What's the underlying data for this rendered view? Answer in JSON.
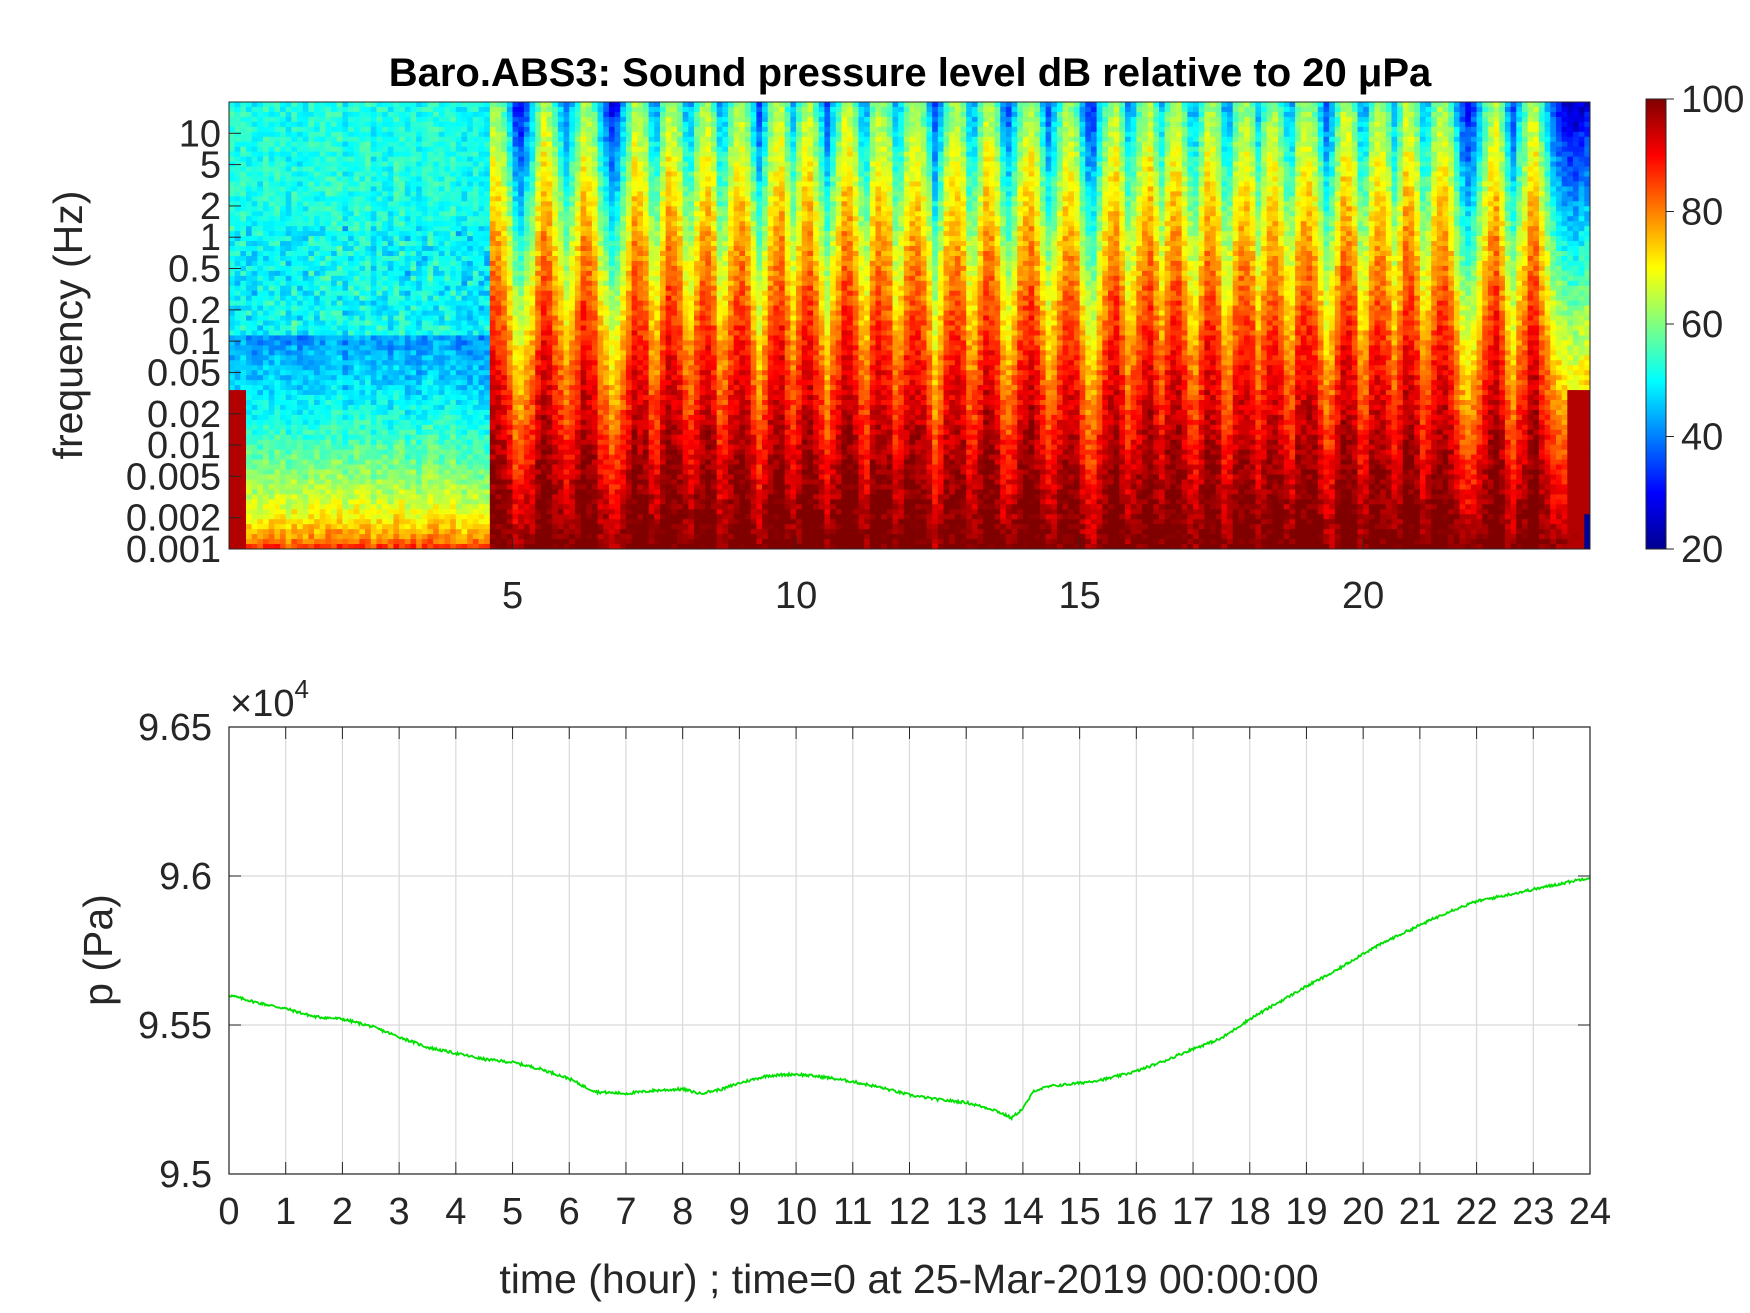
{
  "chart_data": [
    {
      "type": "heatmap",
      "title": "Baro.ABS3: Sound pressure level dB relative to 20 μPa",
      "ylabel": "frequency (Hz)",
      "xlabel": "",
      "x_ticks": [
        5,
        10,
        15,
        20
      ],
      "x_tick_labels": [
        "5",
        "10",
        "15",
        "20"
      ],
      "xlim": [
        0,
        24
      ],
      "y_scale": "log",
      "y_ticks": [
        0.001,
        0.002,
        0.005,
        0.01,
        0.02,
        0.05,
        0.1,
        0.2,
        0.5,
        1,
        2,
        5,
        10
      ],
      "y_tick_labels": [
        "0.001",
        "0.002",
        "0.005",
        "0.01",
        "0.02",
        "0.05",
        "0.1",
        "0.2",
        "0.5",
        "1",
        "2",
        "5",
        "10"
      ],
      "ylim": [
        0.001,
        20
      ],
      "colormap": "jet",
      "colorbar": {
        "range": [
          20,
          100
        ],
        "ticks": [
          20,
          40,
          60,
          80,
          100
        ],
        "tick_labels": [
          "20",
          "40",
          "60",
          "80",
          "100"
        ]
      },
      "quiet_period_hours": [
        0,
        4.6
      ],
      "active_bursts_hours": [
        4.7,
        5.6,
        6.3,
        7.2,
        7.8,
        8.4,
        9.0,
        9.7,
        10.2,
        10.9,
        11.5,
        12.1,
        12.8,
        13.4,
        14.1,
        14.8,
        15.6,
        16.2,
        16.7,
        17.3,
        17.9,
        18.4,
        19.0,
        19.7,
        20.3,
        20.8,
        21.4,
        22.3,
        23.0
      ],
      "grid": false
    },
    {
      "type": "line",
      "xlabel": "time (hour) ; time=0 at 25-Mar-2019 00:00:00",
      "ylabel": "p (Pa)",
      "y_multiplier_label": "×10",
      "y_multiplier_exponent": "4",
      "xlim": [
        0,
        24
      ],
      "ylim": [
        95000,
        96500
      ],
      "x_ticks": [
        0,
        1,
        2,
        3,
        4,
        5,
        6,
        7,
        8,
        9,
        10,
        11,
        12,
        13,
        14,
        15,
        16,
        17,
        18,
        19,
        20,
        21,
        22,
        23,
        24
      ],
      "x_tick_labels": [
        "0",
        "1",
        "2",
        "3",
        "4",
        "5",
        "6",
        "7",
        "8",
        "9",
        "10",
        "11",
        "12",
        "13",
        "14",
        "15",
        "16",
        "17",
        "18",
        "19",
        "20",
        "21",
        "22",
        "23",
        "24"
      ],
      "y_ticks": [
        95000,
        95500,
        96000,
        96500
      ],
      "y_tick_labels": [
        "9.5",
        "9.55",
        "9.6",
        "9.65"
      ],
      "grid": true,
      "line_color": "#00e000",
      "series": [
        {
          "x": [
            0,
            0.5,
            1,
            1.5,
            2,
            2.5,
            3,
            3.5,
            4,
            4.5,
            5,
            5.5,
            6,
            6.3,
            6.5,
            7,
            7.5,
            8,
            8.3,
            8.7,
            9,
            9.5,
            10,
            10.5,
            11,
            11.5,
            12,
            12.5,
            13,
            13.5,
            13.8,
            14,
            14.2,
            14.5,
            15,
            15.5,
            16,
            16.5,
            17,
            17.5,
            18,
            18.5,
            19,
            19.5,
            20,
            20.5,
            21,
            21.5,
            22,
            22.5,
            23,
            23.5,
            24
          ],
          "y": [
            95600,
            95575,
            95555,
            95528,
            95520,
            95496,
            95460,
            95425,
            95405,
            95385,
            95375,
            95352,
            95320,
            95290,
            95275,
            95270,
            95280,
            95285,
            95270,
            95285,
            95305,
            95330,
            95335,
            95325,
            95310,
            95290,
            95265,
            95250,
            95240,
            95215,
            95188,
            95220,
            95280,
            95295,
            95305,
            95320,
            95345,
            95380,
            95420,
            95455,
            95520,
            95575,
            95630,
            95680,
            95740,
            95790,
            95835,
            95880,
            95915,
            95935,
            95955,
            95975,
            95995
          ]
        }
      ]
    }
  ]
}
